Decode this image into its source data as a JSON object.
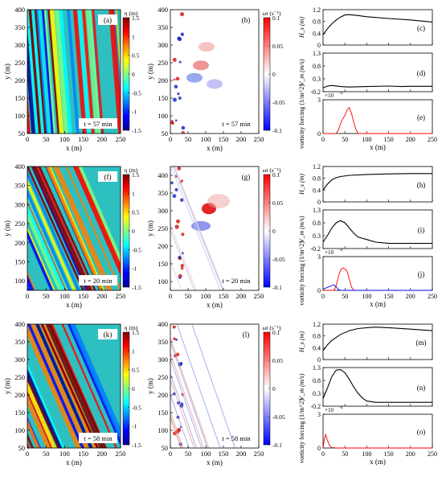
{
  "figure_rows": [
    {
      "time_label": "t = 57 min",
      "eta": {
        "panel_label": "(a)",
        "xlim": [
          0,
          250
        ],
        "ylim": [
          50,
          400
        ],
        "xticks": [
          0,
          50,
          100,
          150,
          200,
          250
        ],
        "yticks": [
          50,
          100,
          150,
          200,
          250,
          300,
          350,
          400
        ],
        "xlabel": "x (m)",
        "ylabel": "y (m)"
      },
      "vort": {
        "panel_label": "(b)",
        "xlim": [
          0,
          250
        ],
        "ylim": [
          50,
          400
        ],
        "xticks": [
          0,
          50,
          100,
          150,
          200,
          250
        ],
        "yticks": [
          50,
          100,
          150,
          200,
          250,
          300,
          350,
          400
        ],
        "xlabel": "x (m)",
        "ylabel": "y (m)"
      },
      "hs": {
        "panel_label": "(c)",
        "ylabel": "H_s (m)",
        "ylim": [
          0,
          1.2
        ],
        "yticks": [
          "0",
          "0.4",
          "0.8",
          "1.2"
        ]
      },
      "vm": {
        "panel_label": "(d)",
        "ylabel": "V_m (m/s)",
        "ylim": [
          -0.2,
          1.3
        ],
        "yticks": [
          "-0.2",
          "0.3",
          "0.8",
          "1.3"
        ]
      },
      "vf": {
        "panel_label": "(e)",
        "ylabel": "vorticity forcing (1/m^2)",
        "ylim": [
          0,
          3
        ],
        "yticks": [
          "0",
          "3"
        ],
        "exponent": "×10",
        "exponent_power": "-4",
        "xlabel": "x (m)",
        "xticks": [
          "0",
          "50",
          "100",
          "150",
          "200",
          "250"
        ]
      }
    },
    {
      "time_label": "t = 20 min",
      "eta": {
        "panel_label": "(f)",
        "xlim": [
          0,
          250
        ],
        "ylim": [
          75,
          400
        ],
        "xticks": [
          0,
          50,
          100,
          150,
          200,
          250
        ],
        "yticks": [
          100,
          150,
          200,
          250,
          300,
          350,
          400
        ],
        "xlabel": "x (m)",
        "ylabel": "y (m)"
      },
      "vort": {
        "panel_label": "(g)",
        "xlim": [
          0,
          250
        ],
        "ylim": [
          75,
          425
        ],
        "xticks": [
          0,
          50,
          100,
          150,
          200,
          250
        ],
        "yticks": [
          100,
          150,
          200,
          250,
          300,
          350,
          400
        ],
        "xlabel": "x (m)",
        "ylabel": "y (m)"
      },
      "hs": {
        "panel_label": "(h)",
        "ylabel": "H_s (m)",
        "ylim": [
          0,
          1.2
        ],
        "yticks": [
          "0",
          "0.4",
          "0.8",
          "1.2"
        ]
      },
      "vm": {
        "panel_label": "(i)",
        "ylabel": "V_m (m/s)",
        "ylim": [
          -0.2,
          1.3
        ],
        "yticks": [
          "-0.2",
          "0.3",
          "0.8",
          "1.3"
        ]
      },
      "vf": {
        "panel_label": "(j)",
        "ylabel": "vorticity forcing (1/m^2)",
        "ylim": [
          0,
          3
        ],
        "yticks": [
          "0",
          "3"
        ],
        "exponent": "×10",
        "exponent_power": "-4",
        "xlabel": "x (m)",
        "xticks": [
          "0",
          "50",
          "100",
          "150",
          "200",
          "250"
        ]
      }
    },
    {
      "time_label": "t = 58 min",
      "eta": {
        "panel_label": "(k)",
        "xlim": [
          0,
          250
        ],
        "ylim": [
          50,
          400
        ],
        "xticks": [
          0,
          50,
          100,
          150,
          200,
          250
        ],
        "yticks": [
          50,
          100,
          150,
          200,
          250,
          300,
          350,
          400
        ],
        "xlabel": "x (m)",
        "ylabel": "y (m)"
      },
      "vort": {
        "panel_label": "(l)",
        "xlim": [
          0,
          250
        ],
        "ylim": [
          50,
          400
        ],
        "xticks": [
          0,
          50,
          100,
          150,
          200,
          250
        ],
        "yticks": [
          50,
          100,
          150,
          200,
          250,
          300,
          350,
          400
        ],
        "xlabel": "x (m)",
        "ylabel": "y (m)"
      },
      "hs": {
        "panel_label": "(m)",
        "ylabel": "H_s (m)",
        "ylim": [
          0,
          1.2
        ],
        "yticks": [
          "0",
          "0.4",
          "0.8",
          "1.2"
        ]
      },
      "vm": {
        "panel_label": "(n)",
        "ylabel": "V_m (m/s)",
        "ylim": [
          -0.2,
          1.3
        ],
        "yticks": [
          "-0.2",
          "0.3",
          "0.8",
          "1.3"
        ]
      },
      "vf": {
        "panel_label": "(o)",
        "ylabel": "vorticity forcing (1/m^2)",
        "ylim": [
          0,
          3
        ],
        "yticks": [
          "0",
          "3"
        ],
        "exponent": "×10",
        "exponent_power": "-4",
        "xlabel": "x (m)",
        "xticks": [
          "0",
          "50",
          "100",
          "150",
          "200",
          "250"
        ]
      }
    }
  ],
  "colorbars": {
    "eta": {
      "title": "η (m)",
      "ticks": [
        "1.5",
        "1",
        "0.5",
        "0",
        "-0.5",
        "-1",
        "-1.5"
      ],
      "range": [
        -1.5,
        1.5
      ]
    },
    "vort": {
      "title": "ωt (s⁻¹)",
      "ticks": [
        "0.1",
        "0.05",
        "0",
        "-0.05",
        "-0.1"
      ],
      "range": [
        -0.1,
        0.1
      ]
    }
  },
  "colors": {
    "jet": [
      "#00008f",
      "#0000ff",
      "#0080ff",
      "#00ffff",
      "#80ff80",
      "#ffff00",
      "#ff8000",
      "#ff0000",
      "#800000"
    ],
    "bwr": [
      "#0000ff",
      "#ffffff",
      "#ff0000"
    ],
    "hs_line": "#000000",
    "vm_line": "#000000",
    "vf_red": "#ff0000",
    "vf_blue": "#0000ff"
  },
  "chart_data": [
    {
      "type": "line",
      "panel": "(c)",
      "ylabel": "H_s (m)",
      "xlabel": "",
      "x": [
        0,
        10,
        20,
        30,
        40,
        50,
        60,
        80,
        100,
        150,
        200,
        250
      ],
      "series": [
        {
          "values": [
            0.35,
            0.55,
            0.72,
            0.85,
            0.95,
            1.02,
            1.03,
            1.0,
            0.96,
            0.9,
            0.85,
            0.78
          ]
        }
      ],
      "ylim": [
        0,
        1.2
      ],
      "xlim": [
        0,
        250
      ]
    },
    {
      "type": "line",
      "panel": "(d)",
      "ylabel": "V_m (m/s)",
      "xlabel": "",
      "x": [
        0,
        10,
        20,
        40,
        60,
        100,
        150,
        180,
        200,
        250
      ],
      "series": [
        {
          "values": [
            -0.05,
            0.02,
            0.04,
            0.0,
            -0.02,
            0.0,
            0.02,
            0.0,
            0.01,
            0.01
          ]
        }
      ],
      "ylim": [
        -0.2,
        1.3
      ],
      "xlim": [
        0,
        250
      ]
    },
    {
      "type": "line",
      "panel": "(e)",
      "ylabel": "vorticity forcing (1/m^2)",
      "xlabel": "x (m)",
      "x": [
        0,
        30,
        35,
        40,
        45,
        50,
        55,
        60,
        65,
        70,
        75,
        80,
        250
      ],
      "series": [
        {
          "values": [
            0,
            0,
            0.3,
            0.9,
            1.3,
            1.6,
            2.1,
            2.3,
            1.8,
            1.0,
            0.4,
            0,
            0
          ]
        }
      ],
      "ylim": [
        0,
        3
      ],
      "xlim": [
        0,
        250
      ]
    },
    {
      "type": "line",
      "panel": "(h)",
      "ylabel": "H_s (m)",
      "xlabel": "",
      "x": [
        0,
        10,
        20,
        30,
        40,
        60,
        100,
        150,
        200,
        250
      ],
      "series": [
        {
          "values": [
            0.4,
            0.6,
            0.75,
            0.82,
            0.86,
            0.9,
            0.93,
            0.95,
            0.96,
            0.96
          ]
        }
      ],
      "ylim": [
        0,
        1.2
      ],
      "xlim": [
        0,
        250
      ]
    },
    {
      "type": "line",
      "panel": "(i)",
      "ylabel": "V_m (m/s)",
      "xlabel": "",
      "x": [
        0,
        10,
        20,
        30,
        40,
        50,
        60,
        70,
        80,
        100,
        120,
        150,
        200,
        250
      ],
      "series": [
        {
          "values": [
            0.05,
            0.3,
            0.6,
            0.8,
            0.88,
            0.8,
            0.6,
            0.4,
            0.25,
            0.15,
            0.05,
            0.0,
            0.0,
            0.0
          ]
        }
      ],
      "ylim": [
        -0.2,
        1.3
      ],
      "xlim": [
        0,
        250
      ]
    },
    {
      "type": "line",
      "panel": "(j)",
      "ylabel": "vorticity forcing (1/m^2)",
      "xlabel": "x (m)",
      "x": [
        0,
        25,
        30,
        35,
        40,
        45,
        50,
        55,
        60,
        65,
        70,
        250
      ],
      "series": [
        {
          "values": [
            0,
            0,
            0.4,
            1.2,
            1.8,
            2.0,
            1.9,
            1.7,
            1.0,
            0.3,
            0,
            0
          ]
        },
        {
          "values": [
            0.1,
            0.5,
            0.3,
            0.1,
            0,
            0,
            0,
            0,
            0,
            0,
            0,
            0
          ]
        }
      ],
      "ylim": [
        0,
        3
      ],
      "xlim": [
        0,
        250
      ]
    },
    {
      "type": "line",
      "panel": "(m)",
      "ylabel": "H_s (m)",
      "xlabel": "",
      "x": [
        0,
        10,
        20,
        40,
        60,
        80,
        100,
        120,
        150,
        200,
        250
      ],
      "series": [
        {
          "values": [
            0.3,
            0.5,
            0.65,
            0.85,
            0.98,
            1.05,
            1.08,
            1.1,
            1.08,
            1.03,
            0.98
          ]
        }
      ],
      "ylim": [
        0,
        1.2
      ],
      "xlim": [
        0,
        250
      ]
    },
    {
      "type": "line",
      "panel": "(n)",
      "ylabel": "V_m (m/s)",
      "xlabel": "",
      "x": [
        0,
        10,
        20,
        30,
        40,
        50,
        60,
        70,
        80,
        90,
        100,
        120,
        150,
        200,
        250
      ],
      "series": [
        {
          "values": [
            0.1,
            0.5,
            0.95,
            1.2,
            1.22,
            1.1,
            0.85,
            0.55,
            0.3,
            0.12,
            0.0,
            -0.05,
            -0.05,
            -0.05,
            -0.05
          ]
        }
      ],
      "ylim": [
        -0.2,
        1.3
      ],
      "xlim": [
        0,
        250
      ]
    },
    {
      "type": "line",
      "panel": "(o)",
      "ylabel": "vorticity forcing (1/m^2)",
      "xlabel": "x (m)",
      "x": [
        0,
        3,
        6,
        10,
        15,
        20,
        30,
        250
      ],
      "series": [
        {
          "values": [
            0,
            0.8,
            1.2,
            0.7,
            0.2,
            0.05,
            0,
            0
          ]
        }
      ],
      "ylim": [
        0,
        3
      ],
      "xlim": [
        0,
        250
      ]
    }
  ]
}
